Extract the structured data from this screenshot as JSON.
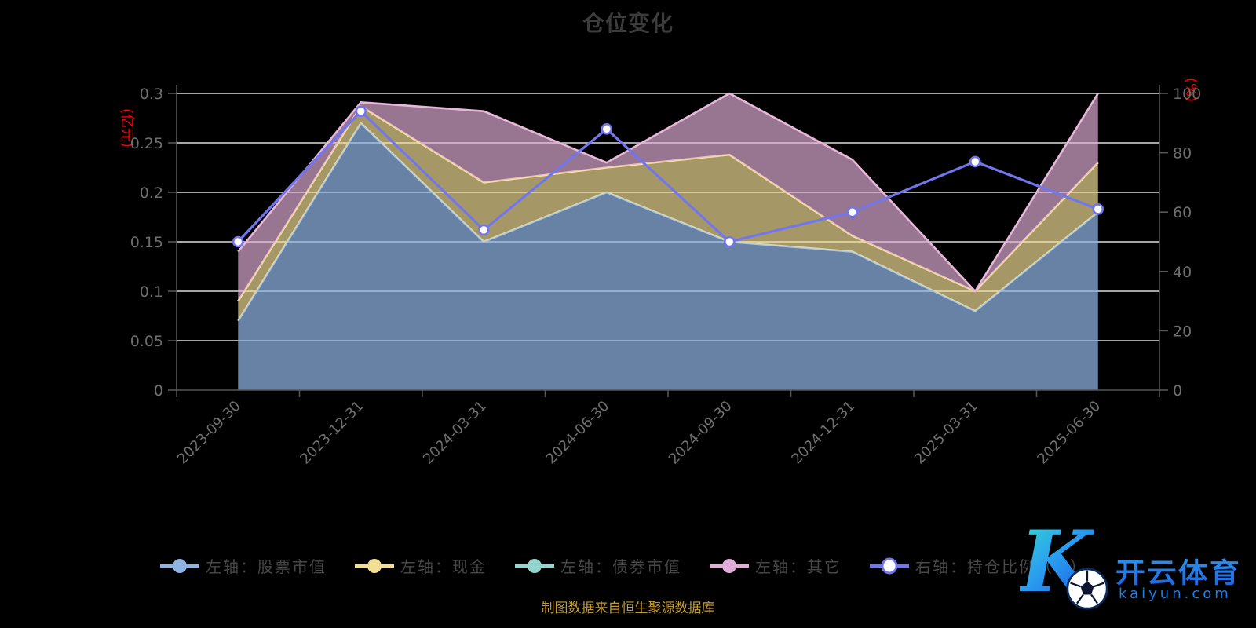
{
  "title": "仓位变化",
  "caption": "制图数据来自恒生聚源数据库",
  "watermark": {
    "letter": "K",
    "brand": "开云体育",
    "domain": "kaiyun.com"
  },
  "colors": {
    "background": "#000000",
    "title_text": "#3c3c3c",
    "axis_line": "#565656",
    "axis_label": "#6e6e6e",
    "grid_line": "#dcdcdc",
    "axis_name_red": "#ff0000",
    "legend_text": "#474747",
    "caption_text": "#c29b32",
    "watermark_blue": "#1f7de6"
  },
  "chart_data": {
    "type": "area",
    "stacked": true,
    "title": "仓位变化",
    "grid": true,
    "legend_position": "bottom",
    "categories": [
      "2023-09-30",
      "2023-12-31",
      "2024-03-31",
      "2024-06-30",
      "2024-09-30",
      "2024-12-31",
      "2025-03-31",
      "2025-06-30"
    ],
    "left_axis": {
      "name": "(亿元)",
      "min": 0,
      "max": 0.3,
      "ticks": [
        0,
        0.05,
        0.1,
        0.15,
        0.2,
        0.25,
        0.3
      ]
    },
    "right_axis": {
      "name": "(%)",
      "min": 0,
      "max": 100,
      "ticks": [
        0,
        20,
        40,
        60,
        80,
        100
      ]
    },
    "series": [
      {
        "name": "左轴：股票市值",
        "type": "area",
        "yaxis": "left",
        "color": "#8fb4e3",
        "line_color": "#a9c6e8",
        "fill": "rgba(143,180,227,0.72)",
        "marker": "solid",
        "values": [
          0.07,
          0.27,
          0.15,
          0.2,
          0.15,
          0.14,
          0.08,
          0.18
        ]
      },
      {
        "name": "左轴：现金",
        "type": "area",
        "yaxis": "left",
        "color": "#f2df94",
        "line_color": "#f3e09c",
        "fill": "rgba(243,224,150,0.68)",
        "marker": "solid",
        "values": [
          0.02,
          0.017,
          0.06,
          0.025,
          0.088,
          0.016,
          0.02,
          0.05
        ]
      },
      {
        "name": "左轴：债券市值",
        "type": "area",
        "yaxis": "left",
        "color": "#94d6cd",
        "line_color": "#94d6cd",
        "fill": "rgba(148,214,205,0.70)",
        "marker": "solid",
        "values": [
          0,
          0,
          0,
          0,
          0,
          0,
          0,
          0
        ]
      },
      {
        "name": "左轴：其它",
        "type": "area",
        "yaxis": "left",
        "color": "#e0aed6",
        "line_color": "#e8b7d9",
        "fill": "rgba(227,175,215,0.67)",
        "marker": "solid",
        "values": [
          0.05,
          0.004,
          0.072,
          0.005,
          0.062,
          0.077,
          0,
          0.07
        ]
      },
      {
        "name": "右轴：持仓比例（%）",
        "type": "line",
        "yaxis": "right",
        "color": "#7276ee",
        "line_color": "#7276ee",
        "marker": "hollow",
        "values": [
          50,
          94,
          54,
          88,
          50,
          60,
          77,
          61
        ]
      }
    ]
  }
}
